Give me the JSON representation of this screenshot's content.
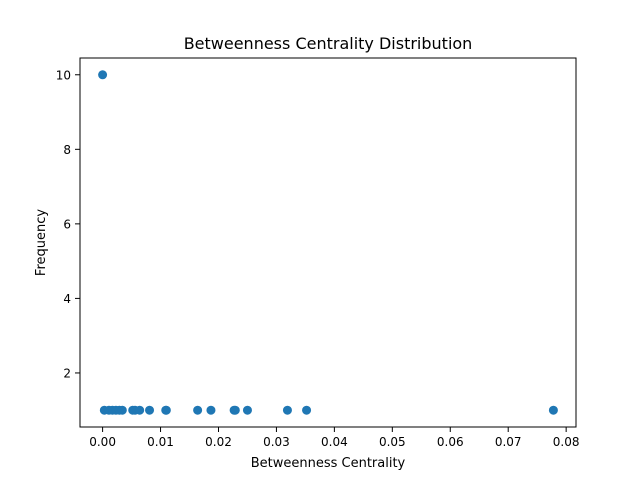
{
  "chart_data": {
    "type": "scatter",
    "title": "Betweenness Centrality Distribution",
    "xlabel": "Betweenness Centrality",
    "ylabel": "Frequency",
    "xlim": [
      -0.0039,
      0.0817
    ],
    "ylim": [
      0.55,
      10.45
    ],
    "xticks": [
      0.0,
      0.01,
      0.02,
      0.03,
      0.04,
      0.05,
      0.06,
      0.07,
      0.08
    ],
    "xtick_labels": [
      "0.00",
      "0.01",
      "0.02",
      "0.03",
      "0.04",
      "0.05",
      "0.06",
      "0.07",
      "0.08"
    ],
    "yticks": [
      2,
      4,
      6,
      8,
      10
    ],
    "ytick_labels": [
      "2",
      "4",
      "6",
      "8",
      "10"
    ],
    "grid": false,
    "marker_color": "#1f77b4",
    "series": [
      {
        "x": [
          0.0,
          0.0003,
          0.0011,
          0.0017,
          0.0023,
          0.0029,
          0.0034,
          0.0052,
          0.0056,
          0.0064,
          0.0081,
          0.0109,
          0.011,
          0.0164,
          0.0187,
          0.0227,
          0.0229,
          0.025,
          0.0319,
          0.0352,
          0.0778
        ],
        "y": [
          10,
          1,
          1,
          1,
          1,
          1,
          1,
          1,
          1,
          1,
          1,
          1,
          1,
          1,
          1,
          1,
          1,
          1,
          1,
          1,
          1
        ]
      }
    ]
  }
}
